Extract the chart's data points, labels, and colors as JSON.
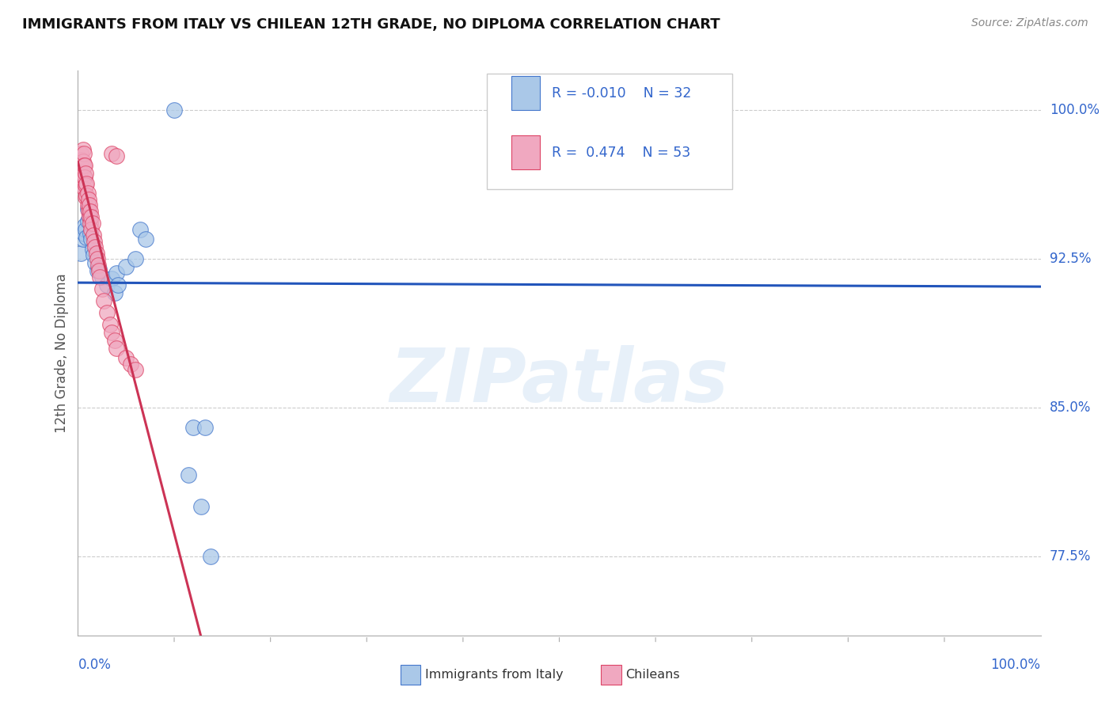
{
  "title": "IMMIGRANTS FROM ITALY VS CHILEAN 12TH GRADE, NO DIPLOMA CORRELATION CHART",
  "source": "Source: ZipAtlas.com",
  "ylabel": "12th Grade, No Diploma",
  "watermark": "ZIPatlas",
  "legend_blue_label": "Immigrants from Italy",
  "legend_pink_label": "Chileans",
  "r_blue": "-0.010",
  "n_blue": "32",
  "r_pink": "0.474",
  "n_pink": "53",
  "ytick_labels": [
    "100.0%",
    "92.5%",
    "85.0%",
    "77.5%"
  ],
  "ytick_values": [
    1.0,
    0.925,
    0.85,
    0.775
  ],
  "blue_fill": "#aac8e8",
  "pink_fill": "#f0a8c0",
  "blue_edge": "#4477cc",
  "pink_edge": "#dd4466",
  "axis_label_color": "#3366cc",
  "blue_trendline_color": "#2255bb",
  "pink_trendline_color": "#cc3355",
  "blue_scatter_x": [
    0.003,
    0.005,
    0.006,
    0.007,
    0.008,
    0.009,
    0.01,
    0.01,
    0.012,
    0.013,
    0.014,
    0.015,
    0.016,
    0.018,
    0.02,
    0.022,
    0.025,
    0.03,
    0.035,
    0.04,
    0.05,
    0.06,
    0.065,
    0.07,
    0.038,
    0.042,
    0.1,
    0.115,
    0.12,
    0.128,
    0.132,
    0.138
  ],
  "blue_scatter_y": [
    0.928,
    0.935,
    0.938,
    0.942,
    0.94,
    0.936,
    0.95,
    0.944,
    0.946,
    0.938,
    0.935,
    0.93,
    0.927,
    0.923,
    0.919,
    0.92,
    0.916,
    0.912,
    0.915,
    0.918,
    0.921,
    0.925,
    0.94,
    0.935,
    0.908,
    0.912,
    1.0,
    0.816,
    0.84,
    0.8,
    0.84,
    0.775
  ],
  "pink_scatter_x": [
    0.001,
    0.002,
    0.002,
    0.003,
    0.003,
    0.003,
    0.004,
    0.004,
    0.005,
    0.005,
    0.005,
    0.006,
    0.006,
    0.006,
    0.007,
    0.007,
    0.007,
    0.008,
    0.008,
    0.008,
    0.009,
    0.009,
    0.01,
    0.01,
    0.011,
    0.011,
    0.012,
    0.012,
    0.013,
    0.013,
    0.014,
    0.014,
    0.015,
    0.016,
    0.017,
    0.018,
    0.019,
    0.02,
    0.021,
    0.022,
    0.023,
    0.025,
    0.027,
    0.03,
    0.033,
    0.035,
    0.038,
    0.04,
    0.035,
    0.04,
    0.05,
    0.055,
    0.06
  ],
  "pink_scatter_y": [
    0.965,
    0.968,
    0.962,
    0.978,
    0.972,
    0.966,
    0.975,
    0.969,
    0.98,
    0.974,
    0.968,
    0.978,
    0.972,
    0.966,
    0.972,
    0.966,
    0.96,
    0.968,
    0.962,
    0.956,
    0.963,
    0.957,
    0.958,
    0.952,
    0.955,
    0.949,
    0.952,
    0.946,
    0.949,
    0.943,
    0.946,
    0.94,
    0.943,
    0.937,
    0.934,
    0.931,
    0.928,
    0.925,
    0.922,
    0.919,
    0.916,
    0.91,
    0.904,
    0.898,
    0.892,
    0.888,
    0.884,
    0.88,
    0.978,
    0.977,
    0.875,
    0.872,
    0.869
  ],
  "xmin": 0.0,
  "xmax": 1.0,
  "ymin": 0.735,
  "ymax": 1.02,
  "grid_color": "#cccccc",
  "bg_color": "#ffffff"
}
